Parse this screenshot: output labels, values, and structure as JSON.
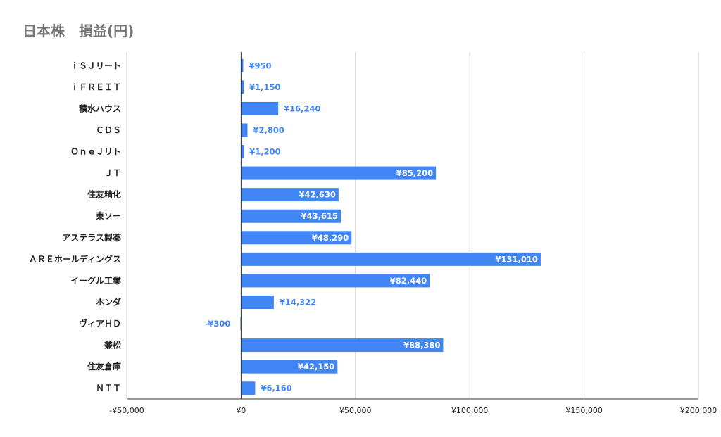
{
  "title": "日本株　損益(円)",
  "chart_data": {
    "type": "bar",
    "orientation": "horizontal",
    "title": "日本株　損益(円)",
    "xlabel": "",
    "ylabel": "",
    "xlim": [
      -50000,
      200000
    ],
    "x_ticks": [
      -50000,
      0,
      50000,
      100000,
      150000,
      200000
    ],
    "x_tick_labels": [
      "-¥50,000",
      "¥0",
      "¥50,000",
      "¥100,000",
      "¥150,000",
      "¥200,000"
    ],
    "grid": true,
    "legend": "none",
    "bar_color": "#4285f4",
    "categories": [
      "ｉＳＪリート",
      "ｉＦＲＥＩＴ",
      "積水ハウス",
      "ＣＤＳ",
      "ＯｎｅＪリト",
      "ＪＴ",
      "住友精化",
      "東ソー",
      "アステラス製薬",
      "ＡＲＥホールディングス",
      "イーグル工業",
      "ホンダ",
      "ヴィアＨＤ",
      "兼松",
      "住友倉庫",
      "ＮＴＴ"
    ],
    "values": [
      950,
      1150,
      16240,
      2800,
      1200,
      85200,
      42630,
      43615,
      48290,
      131010,
      82440,
      14322,
      -300,
      88380,
      42150,
      6160
    ],
    "data_labels": [
      "¥950",
      "¥1,150",
      "¥16,240",
      "¥2,800",
      "¥1,200",
      "¥85,200",
      "¥42,630",
      "¥43,615",
      "¥48,290",
      "¥131,010",
      "¥82,440",
      "¥14,322",
      "-¥300",
      "¥88,380",
      "¥42,150",
      "¥6,160"
    ]
  }
}
